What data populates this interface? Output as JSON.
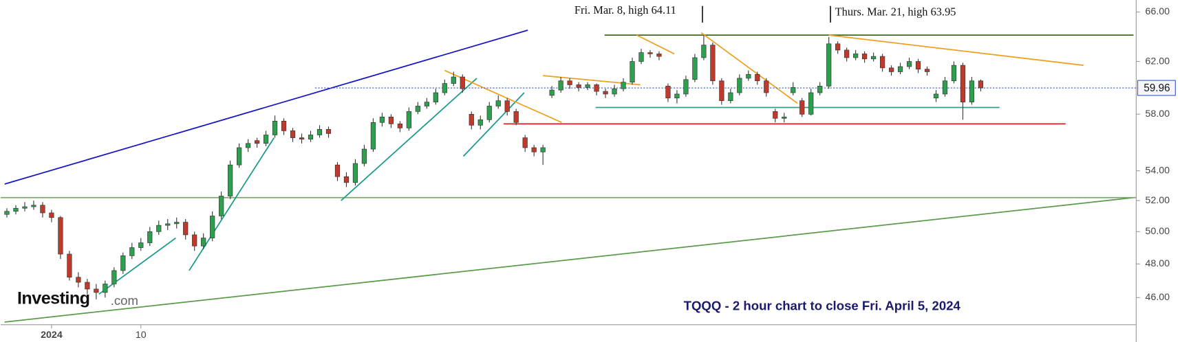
{
  "chart_data": {
    "type": "candlestick",
    "log_scale": true,
    "ylim": [
      44.45,
      67.01
    ],
    "yticks": [
      {
        "value": 46,
        "label": "46.00"
      },
      {
        "value": 48,
        "label": "48.00"
      },
      {
        "value": 50,
        "label": "50.00"
      },
      {
        "value": 52,
        "label": "52.00"
      },
      {
        "value": 54,
        "label": "54.00"
      },
      {
        "value": 58,
        "label": "58.00"
      },
      {
        "value": 62,
        "label": "62.00"
      },
      {
        "value": 66,
        "label": "66.00"
      }
    ],
    "xlim": [
      -0.7,
      126.4
    ],
    "up_color": "#2e9e4f",
    "down_color": "#c0392b",
    "categories": [
      null,
      null,
      null,
      null,
      null,
      "2024",
      null,
      null,
      null,
      null,
      null,
      null,
      null,
      null,
      null,
      "10",
      null,
      null,
      null,
      null,
      null,
      null,
      null,
      null,
      null,
      null,
      null,
      null,
      null,
      null,
      null,
      null,
      null,
      null,
      null,
      null,
      null,
      null,
      null,
      null,
      null,
      null,
      null,
      null,
      null,
      null,
      null,
      null,
      null,
      null,
      null,
      null,
      null,
      null,
      null,
      null,
      null,
      null,
      null,
      null,
      null,
      null,
      null,
      null,
      null,
      null,
      null,
      null,
      null,
      null,
      null,
      null,
      null,
      null,
      null,
      null,
      null,
      null,
      null,
      null,
      null,
      null,
      null,
      null,
      null,
      null,
      null,
      null,
      null,
      null,
      null,
      null,
      null,
      null,
      null,
      null,
      null,
      null,
      null,
      null,
      null,
      null,
      null,
      null,
      null,
      null,
      null,
      null,
      null,
      null
    ],
    "open": [
      51.1,
      51.3,
      51.5,
      51.6,
      51.7,
      51.2,
      50.9,
      48.6,
      47.2,
      46.9,
      46.5,
      46.3,
      46.8,
      47.6,
      48.5,
      49.0,
      49.3,
      50.0,
      50.4,
      50.5,
      50.6,
      49.8,
      49.1,
      49.6,
      51.0,
      52.3,
      54.4,
      55.6,
      56.1,
      55.9,
      56.5,
      57.5,
      56.8,
      56.3,
      56.2,
      56.5,
      56.9,
      54.4,
      53.6,
      53.2,
      54.5,
      55.5,
      57.4,
      57.8,
      57.3,
      57.0,
      58.2,
      58.6,
      58.9,
      59.6,
      60.3,
      60.8,
      58.0,
      57.2,
      57.6,
      58.6,
      59.0,
      58.2,
      56.3,
      55.6,
      55.3,
      59.4,
      59.8,
      60.5,
      60.2,
      60.0,
      60.2,
      59.7,
      59.5,
      59.9,
      60.4,
      62.0,
      62.7,
      62.6,
      60.1,
      59.2,
      59.5,
      60.6,
      62.3,
      63.3,
      60.5,
      59.0,
      59.6,
      60.7,
      61.0,
      60.5,
      58.2,
      57.7,
      59.6,
      59.0,
      58.0,
      59.6,
      60.1,
      63.4,
      62.9,
      62.3,
      62.6,
      62.2,
      62.4,
      61.5,
      61.2,
      61.6,
      62.0,
      61.4,
      59.2,
      59.5,
      60.5,
      61.7,
      58.9,
      60.5
    ],
    "high": [
      51.5,
      51.7,
      51.9,
      52.0,
      51.9,
      51.4,
      51.0,
      48.8,
      47.5,
      47.1,
      46.8,
      47.0,
      47.8,
      48.7,
      49.3,
      49.6,
      50.3,
      50.7,
      50.8,
      50.9,
      50.8,
      50.0,
      49.9,
      51.3,
      52.6,
      54.7,
      55.9,
      56.2,
      56.3,
      56.8,
      57.9,
      57.7,
      57.0,
      56.6,
      56.8,
      57.2,
      57.1,
      54.6,
      53.9,
      54.8,
      55.8,
      57.7,
      58.1,
      58.0,
      57.5,
      58.5,
      58.9,
      59.2,
      59.9,
      60.6,
      61.2,
      61.0,
      58.2,
      57.9,
      58.9,
      59.4,
      59.2,
      58.4,
      56.5,
      55.8,
      55.8,
      60.1,
      60.8,
      60.7,
      60.4,
      60.4,
      60.3,
      59.9,
      60.2,
      60.7,
      62.3,
      63.0,
      62.9,
      62.8,
      60.3,
      59.8,
      60.9,
      62.6,
      64.11,
      63.5,
      60.7,
      59.9,
      61.0,
      61.3,
      61.2,
      60.7,
      58.4,
      58.1,
      60.4,
      59.2,
      59.9,
      60.4,
      63.95,
      63.6,
      63.1,
      62.9,
      62.8,
      62.7,
      62.6,
      61.7,
      61.9,
      62.3,
      62.2,
      61.6,
      59.8,
      60.8,
      62.0,
      61.9,
      60.8,
      60.6
    ],
    "low": [
      50.9,
      51.1,
      51.3,
      51.4,
      50.9,
      50.6,
      48.3,
      47.0,
      46.6,
      46.2,
      45.9,
      46.0,
      46.6,
      47.4,
      48.3,
      48.8,
      49.1,
      49.8,
      50.1,
      50.2,
      49.5,
      48.8,
      48.9,
      49.4,
      50.8,
      52.1,
      54.2,
      55.3,
      55.6,
      55.7,
      56.3,
      56.5,
      56.0,
      55.9,
      56.0,
      56.3,
      56.3,
      53.3,
      52.9,
      53.0,
      54.3,
      55.3,
      57.1,
      57.0,
      56.7,
      56.8,
      58.0,
      58.4,
      58.7,
      59.4,
      60.1,
      59.6,
      56.9,
      56.9,
      57.4,
      58.4,
      57.9,
      57.2,
      55.3,
      55.0,
      54.4,
      59.2,
      59.6,
      59.9,
      59.7,
      59.8,
      59.4,
      59.2,
      59.3,
      59.7,
      60.2,
      61.8,
      62.3,
      62.1,
      58.9,
      58.8,
      59.3,
      60.4,
      62.1,
      60.2,
      58.7,
      58.8,
      59.4,
      60.5,
      60.2,
      59.3,
      57.4,
      57.4,
      59.4,
      57.8,
      57.9,
      59.4,
      59.9,
      62.6,
      62.0,
      62.1,
      61.9,
      62.0,
      61.2,
      60.9,
      61.0,
      61.4,
      61.1,
      60.9,
      58.9,
      59.3,
      60.3,
      57.6,
      58.7,
      59.7
    ],
    "close": [
      51.3,
      51.5,
      51.6,
      51.7,
      51.2,
      50.9,
      48.6,
      47.2,
      46.9,
      46.5,
      46.3,
      46.8,
      47.6,
      48.5,
      49.0,
      49.3,
      50.0,
      50.4,
      50.5,
      50.6,
      49.8,
      49.1,
      49.6,
      51.0,
      52.3,
      54.4,
      55.6,
      55.9,
      55.9,
      56.5,
      57.5,
      56.8,
      56.3,
      56.2,
      56.5,
      56.9,
      56.6,
      53.6,
      53.2,
      54.5,
      55.5,
      57.4,
      57.8,
      57.3,
      57.0,
      58.2,
      58.6,
      58.9,
      59.6,
      60.3,
      60.8,
      59.9,
      57.2,
      57.6,
      58.6,
      59.0,
      58.2,
      57.4,
      55.6,
      55.3,
      55.6,
      59.8,
      60.5,
      60.2,
      60.0,
      60.2,
      59.7,
      59.5,
      59.9,
      60.4,
      62.0,
      62.7,
      62.6,
      62.4,
      59.2,
      59.5,
      60.6,
      62.3,
      63.3,
      60.5,
      59.0,
      59.6,
      60.7,
      61.0,
      60.5,
      59.6,
      57.7,
      57.8,
      60.0,
      58.0,
      59.6,
      60.1,
      63.4,
      62.9,
      62.3,
      62.6,
      62.2,
      62.4,
      61.5,
      61.2,
      61.6,
      62.0,
      61.4,
      61.2,
      59.5,
      60.5,
      61.7,
      58.9,
      60.5,
      59.96
    ],
    "last_price": {
      "value": 59.96,
      "label": "59.96"
    },
    "trendlines": [
      {
        "color": "#1515c8",
        "x": [
          -0.25,
          58.3
        ],
        "y": [
          53.1,
          64.5
        ]
      },
      {
        "color": "#5a9a4a",
        "x": [
          -0.25,
          126.1
        ],
        "y": [
          44.6,
          52.2
        ]
      },
      {
        "color": "#7aaa6a",
        "x": [
          -0.7,
          126.4
        ],
        "y": [
          52.2,
          52.2
        ]
      },
      {
        "color": "#3d6b1e",
        "x": [
          66.9,
          126.1
        ],
        "y": [
          64.1,
          64.1
        ]
      },
      {
        "color": "#d42020",
        "x": [
          55.6,
          118.5
        ],
        "y": [
          57.3,
          57.3
        ]
      },
      {
        "color": "#3a9a8a",
        "x": [
          65.9,
          111.1
        ],
        "y": [
          58.5,
          58.5
        ]
      },
      {
        "color": "#1a9a8a",
        "x": [
          10.3,
          18.9
        ],
        "y": [
          46.2,
          49.6
        ]
      },
      {
        "color": "#1a9a8a",
        "x": [
          20.4,
          29.9
        ],
        "y": [
          47.6,
          56.3
        ]
      },
      {
        "color": "#1a9a8a",
        "x": [
          37.4,
          52.6
        ],
        "y": [
          52.0,
          60.7
        ]
      },
      {
        "color": "#1a9a8a",
        "x": [
          51.1,
          57.9
        ],
        "y": [
          55.0,
          59.6
        ]
      },
      {
        "color": "#f0a020",
        "x": [
          49.0,
          62.1
        ],
        "y": [
          61.3,
          57.4
        ]
      },
      {
        "color": "#f0a020",
        "x": [
          60.0,
          70.9
        ],
        "y": [
          60.9,
          60.2
        ]
      },
      {
        "color": "#f0a020",
        "x": [
          70.5,
          74.7
        ],
        "y": [
          64.1,
          62.6
        ]
      },
      {
        "color": "#f0a020",
        "x": [
          77.7,
          88.5
        ],
        "y": [
          64.3,
          58.8
        ]
      },
      {
        "color": "#f0a020",
        "x": [
          92.0,
          120.5
        ],
        "y": [
          64.1,
          61.7
        ]
      }
    ],
    "annotations": [
      "Fri. Mar. 8, high 64.11",
      "Thurs. Mar. 21, high 63.95"
    ],
    "caption": "TQQQ - 2 hour chart to close Fri. April 5, 2024",
    "logo": {
      "name": "Investing",
      "suffix": ".com"
    }
  }
}
